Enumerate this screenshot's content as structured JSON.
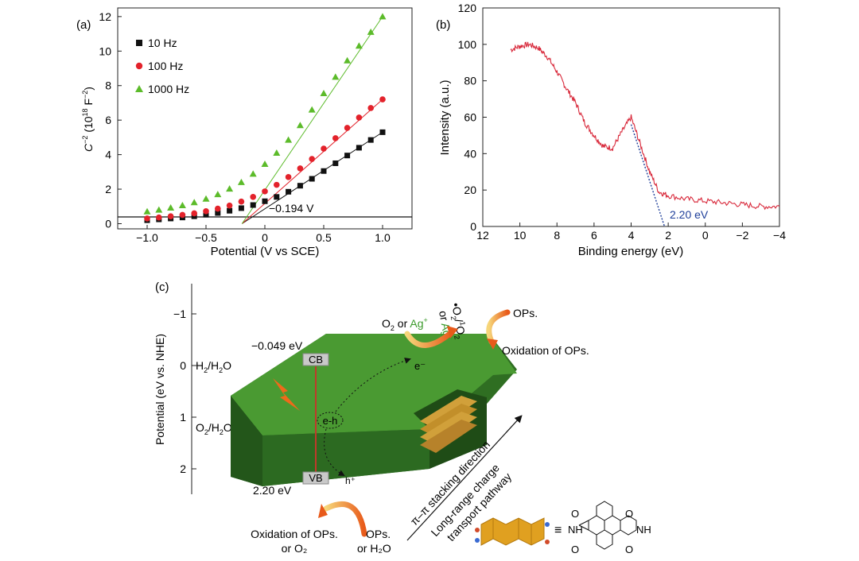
{
  "panel_a": {
    "label": "(a)",
    "ylabel_base": "C",
    "ylabel_sup": "−2",
    "ylabel_rest": " (10",
    "ylabel_sup2": "18",
    "ylabel_end": " F",
    "ylabel_sup3": "−2",
    "ylabel_close": ")",
    "xlabel": "Potential (V vs SCE)",
    "annotation": "−0.194 V",
    "x_ticks": [
      "−1.0",
      "−0.5",
      "0",
      "0.5",
      "1.0"
    ],
    "y_ticks": [
      "0",
      "2",
      "4",
      "6",
      "8",
      "10",
      "12"
    ]
  },
  "panel_b": {
    "label": "(b)",
    "xlabel": "Binding energy (eV)",
    "ylabel": "Intensity (a.u.)",
    "annotation": "2.20 eV",
    "x_ticks": [
      "12",
      "10",
      "8",
      "6",
      "4",
      "2",
      "0",
      "−2",
      "−4"
    ],
    "y_ticks": [
      "0",
      "20",
      "40",
      "60",
      "80",
      "100",
      "120"
    ]
  },
  "panel_c": {
    "label": "(c)",
    "ylabel": "Potential (eV vs. NHE)",
    "y_ticks": [
      "−1",
      "0",
      "1",
      "2"
    ],
    "h2": "H",
    "h2_sub": "2",
    "h2_rest": "/H",
    "h2_sub2": "2",
    "h2_end": "O",
    "o2": "O",
    "o2_sub": "2",
    "o2_rest": "/H",
    "o2_sub2": "2",
    "o2_end": "O",
    "cb_label": "CB",
    "vb_label": "VB",
    "cb_energy": "−0.049 eV",
    "vb_energy": "2.20 eV",
    "electron": "e⁻",
    "hole": "h⁺",
    "pair": "e-h",
    "top_reactant_a": "O",
    "top_reactant_sub": "2",
    "top_or": " or ",
    "top_ag": "Ag",
    "top_ag_sup": "+",
    "top_product_a": "•O",
    "top_product_sub": "2",
    "top_product_sup": "1",
    "top_product_b": "O",
    "top_product_sub2": "2",
    "top_or2": "or ",
    "top_ag2": "Ag",
    "top_ag2_sup": "+",
    "ops_top": "OPs.",
    "oxidation_top": "Oxidation of OPs.",
    "ops_bottom_1": "OPs.",
    "ops_bottom_2": "or H₂O",
    "oxidation_bottom_1": "Oxidation of OPs.",
    "oxidation_bottom_2": "or O₂",
    "stacking": "π–π stacking direction",
    "pathway_1": "Long-range charge",
    "pathway_2": "transport pathway",
    "mol_o": "O",
    "mol_nh": "NH"
  },
  "colors": {
    "s10": "#111111",
    "s100": "#e3222b",
    "s1000": "#5cbb2a",
    "xps": "#d8283a",
    "fit": "#1f3f9a",
    "block_top": "#4a9a32",
    "block_side": "#2f6e22",
    "arrow": "#e8702a",
    "ag_green": "#3a9a2a"
  },
  "chart_data": [
    {
      "type": "scatter",
      "title": "",
      "xlabel": "Potential (V vs SCE)",
      "ylabel": "C−2 (1018 F−2)",
      "xlim": [
        -1.25,
        1.25
      ],
      "ylim": [
        -0.3,
        12.5
      ],
      "x": [
        -1.0,
        -0.9,
        -0.8,
        -0.7,
        -0.6,
        -0.5,
        -0.4,
        -0.3,
        -0.2,
        -0.1,
        0.0,
        0.1,
        0.2,
        0.3,
        0.4,
        0.5,
        0.6,
        0.7,
        0.8,
        0.9,
        1.0
      ],
      "series": [
        {
          "name": "10 Hz",
          "marker": "square",
          "values": [
            0.2,
            0.25,
            0.3,
            0.36,
            0.43,
            0.52,
            0.62,
            0.75,
            0.9,
            1.08,
            1.3,
            1.55,
            1.85,
            2.2,
            2.6,
            3.05,
            3.5,
            3.95,
            4.4,
            4.85,
            5.3
          ]
        },
        {
          "name": "100 Hz",
          "marker": "circle",
          "values": [
            0.3,
            0.36,
            0.43,
            0.51,
            0.6,
            0.72,
            0.87,
            1.05,
            1.28,
            1.55,
            1.87,
            2.25,
            2.7,
            3.2,
            3.75,
            4.35,
            4.95,
            5.55,
            6.15,
            6.7,
            7.2
          ]
        },
        {
          "name": "1000 Hz",
          "marker": "triangle",
          "values": [
            0.7,
            0.8,
            0.92,
            1.06,
            1.23,
            1.44,
            1.7,
            2.02,
            2.4,
            2.88,
            3.45,
            4.1,
            4.85,
            5.7,
            6.6,
            7.55,
            8.5,
            9.45,
            10.3,
            11.1,
            12.0
          ]
        }
      ],
      "fit_intercept_x": -0.194,
      "legend": "top-left",
      "annotations": [
        "−0.194 V"
      ]
    },
    {
      "type": "line",
      "title": "",
      "xlabel": "Binding energy (eV)",
      "ylabel": "Intensity (a.u.)",
      "xlim": [
        12,
        -4
      ],
      "ylim": [
        0,
        120
      ],
      "x": [
        10.5,
        10.0,
        9.5,
        9.0,
        8.5,
        8.0,
        7.5,
        7.0,
        6.5,
        6.0,
        5.5,
        5.0,
        4.5,
        4.0,
        3.5,
        3.0,
        2.5,
        2.0,
        1.0,
        0.0,
        -1.0,
        -2.0,
        -3.0,
        -4.0
      ],
      "series": [
        {
          "name": "",
          "values": [
            97,
            99,
            100,
            98,
            93,
            85,
            76,
            68,
            57,
            50,
            44,
            43,
            52,
            60,
            45,
            30,
            19,
            17,
            15,
            14,
            13,
            12,
            11,
            11
          ]
        }
      ],
      "fit_x_intercept": 2.2,
      "annotations": [
        "2.20 eV"
      ]
    }
  ]
}
